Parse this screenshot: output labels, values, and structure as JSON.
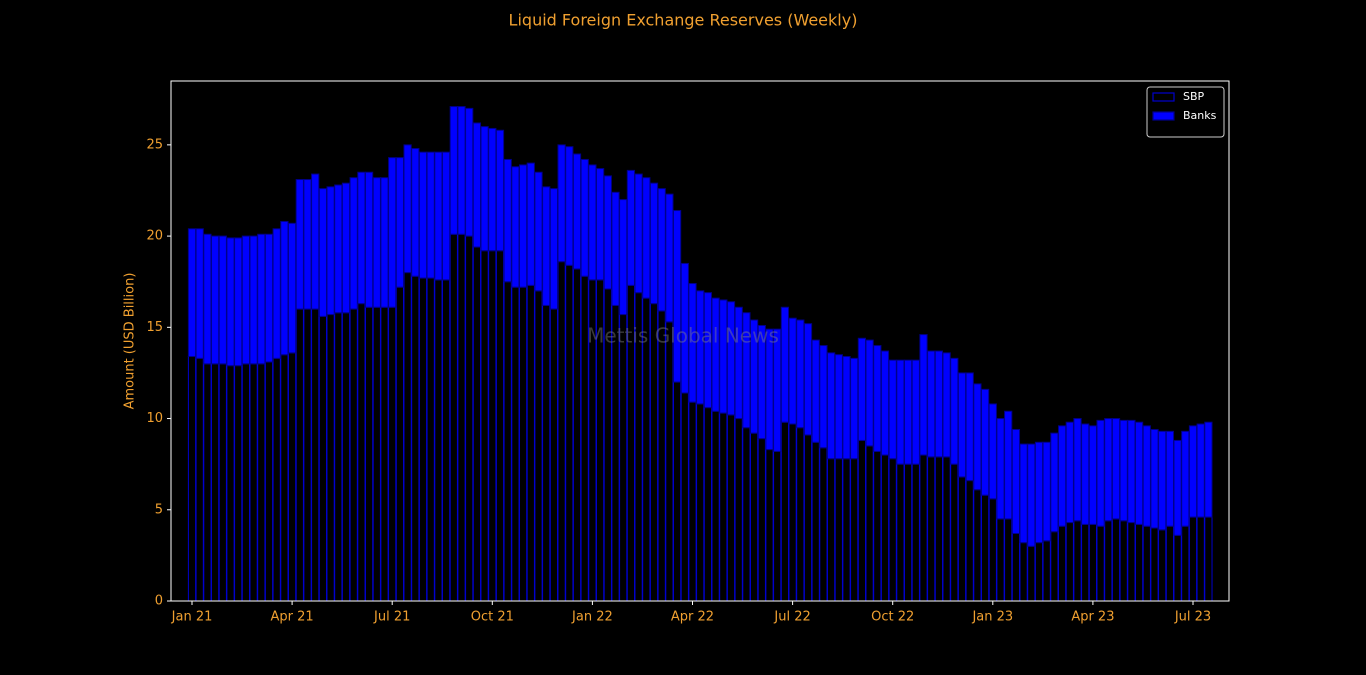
{
  "chart_data": {
    "type": "stacked_bar",
    "title": "Liquid Foreign Exchange Reserves (Weekly)",
    "ylabel": "Amount (USD Billion)",
    "watermark": "Mettis Global News",
    "text_color": "#f0a030",
    "legend": "upper right",
    "categories": [
      "Jan 21",
      null,
      null,
      null,
      null,
      null,
      null,
      null,
      null,
      null,
      null,
      null,
      null,
      "Apr 21",
      null,
      null,
      null,
      null,
      null,
      null,
      null,
      null,
      null,
      null,
      null,
      null,
      "Jul 21",
      null,
      null,
      null,
      null,
      null,
      null,
      null,
      null,
      null,
      null,
      null,
      null,
      "Oct 21",
      null,
      null,
      null,
      null,
      null,
      null,
      null,
      null,
      null,
      null,
      null,
      null,
      "Jan 22",
      null,
      null,
      null,
      null,
      null,
      null,
      null,
      null,
      null,
      null,
      null,
      null,
      "Apr 22",
      null,
      null,
      null,
      null,
      null,
      null,
      null,
      null,
      null,
      null,
      null,
      null,
      "Jul 22",
      null,
      null,
      null,
      null,
      null,
      null,
      null,
      null,
      null,
      null,
      null,
      null,
      "Oct 22",
      null,
      null,
      null,
      null,
      null,
      null,
      null,
      null,
      null,
      null,
      null,
      null,
      "Jan 23",
      null,
      null,
      null,
      null,
      null,
      null,
      null,
      null,
      null,
      null,
      null,
      null,
      "Apr 23",
      null,
      null,
      null,
      null,
      null,
      null,
      null,
      null,
      null,
      null,
      null,
      null,
      "Jul 23",
      null,
      null
    ],
    "series": [
      {
        "name": "SBP",
        "color": "#000000",
        "edgecolor": "#0000cd",
        "values": [
          13.4,
          13.3,
          13.0,
          13.0,
          13.0,
          12.9,
          12.9,
          13.0,
          13.0,
          13.0,
          13.1,
          13.3,
          13.5,
          13.6,
          16.0,
          16.0,
          16.0,
          15.6,
          15.7,
          15.8,
          15.8,
          16.0,
          16.3,
          16.1,
          16.1,
          16.1,
          16.1,
          17.2,
          18.0,
          17.8,
          17.7,
          17.7,
          17.6,
          17.6,
          20.1,
          20.1,
          20.0,
          19.4,
          19.2,
          19.2,
          19.2,
          17.5,
          17.2,
          17.2,
          17.3,
          17.0,
          16.2,
          16.0,
          18.6,
          18.4,
          18.2,
          17.8,
          17.6,
          17.6,
          17.1,
          16.2,
          15.7,
          17.3,
          16.9,
          16.6,
          16.3,
          15.9,
          15.3,
          12.0,
          11.4,
          10.9,
          10.8,
          10.6,
          10.4,
          10.3,
          10.2,
          10.0,
          9.5,
          9.2,
          8.9,
          8.3,
          8.2,
          9.8,
          9.7,
          9.5,
          9.1,
          8.7,
          8.4,
          7.8,
          7.8,
          7.8,
          7.8,
          8.8,
          8.5,
          8.2,
          8.0,
          7.8,
          7.5,
          7.5,
          7.5,
          8.0,
          7.9,
          7.9,
          7.9,
          7.5,
          6.8,
          6.6,
          6.1,
          5.8,
          5.6,
          4.5,
          4.5,
          3.7,
          3.2,
          3.0,
          3.2,
          3.3,
          3.8,
          4.1,
          4.3,
          4.4,
          4.2,
          4.2,
          4.1,
          4.4,
          4.5,
          4.4,
          4.3,
          4.2,
          4.1,
          4.0,
          3.9,
          4.1,
          3.6,
          4.1,
          4.6,
          4.6,
          4.6
        ]
      },
      {
        "name": "Banks",
        "color": "#0000ff",
        "edgecolor": "#00008b",
        "values": [
          7.0,
          7.1,
          7.1,
          7.0,
          7.0,
          7.0,
          7.0,
          7.0,
          7.0,
          7.1,
          7.0,
          7.1,
          7.3,
          7.1,
          7.1,
          7.1,
          7.4,
          7.0,
          7.0,
          7.0,
          7.1,
          7.2,
          7.2,
          7.4,
          7.1,
          7.1,
          8.2,
          7.1,
          7.0,
          7.0,
          6.9,
          6.9,
          7.0,
          7.0,
          7.0,
          7.0,
          7.0,
          6.8,
          6.8,
          6.7,
          6.6,
          6.7,
          6.6,
          6.7,
          6.7,
          6.5,
          6.5,
          6.6,
          6.4,
          6.5,
          6.3,
          6.4,
          6.3,
          6.1,
          6.2,
          6.2,
          6.3,
          6.3,
          6.5,
          6.6,
          6.6,
          6.7,
          7.0,
          9.4,
          7.1,
          6.5,
          6.2,
          6.3,
          6.2,
          6.2,
          6.2,
          6.1,
          6.3,
          6.2,
          6.2,
          6.6,
          6.7,
          6.3,
          5.8,
          5.9,
          6.1,
          5.6,
          5.6,
          5.8,
          5.7,
          5.6,
          5.5,
          5.6,
          5.8,
          5.8,
          5.7,
          5.4,
          5.7,
          5.7,
          5.7,
          6.6,
          5.8,
          5.8,
          5.7,
          5.8,
          5.7,
          5.9,
          5.8,
          5.8,
          5.2,
          5.5,
          5.9,
          5.7,
          5.4,
          5.6,
          5.5,
          5.4,
          5.4,
          5.5,
          5.5,
          5.6,
          5.5,
          5.4,
          5.8,
          5.6,
          5.5,
          5.5,
          5.6,
          5.6,
          5.5,
          5.4,
          5.4,
          5.2,
          5.2,
          5.2,
          5.0,
          5.1,
          5.2
        ]
      }
    ],
    "ylim": [
      0,
      28.5
    ],
    "yticks": [
      0,
      5,
      10,
      15,
      20,
      25
    ],
    "grid": false
  }
}
